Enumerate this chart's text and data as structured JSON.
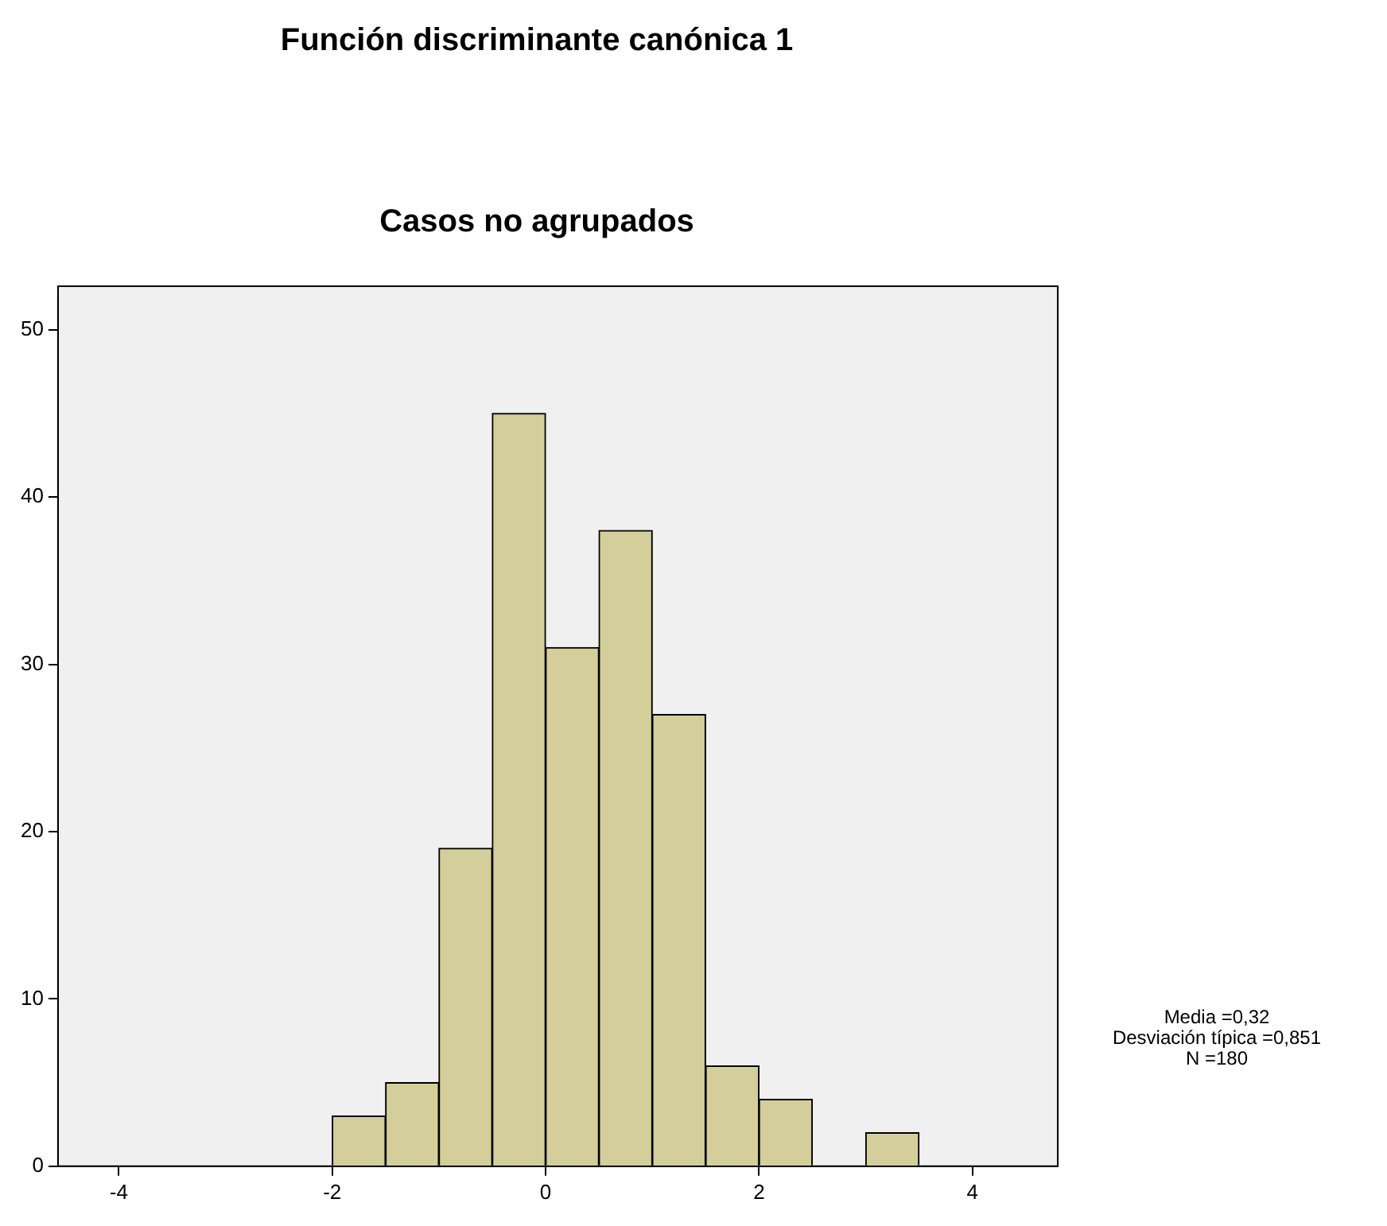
{
  "chart_data": {
    "type": "histogram",
    "title": "Función discriminante canónica 1",
    "subtitle": "Casos no agrupados",
    "bins": [
      -2,
      -1.5,
      -1,
      -0.5,
      0,
      0.5,
      1,
      1.5,
      2,
      2.5,
      3,
      3.5
    ],
    "values": [
      3,
      5,
      19,
      45,
      31,
      38,
      27,
      6,
      4,
      0,
      2
    ],
    "color": "#d4cf9a",
    "xlim": [
      -4.57,
      4.8
    ],
    "xticks": [
      -4,
      -2,
      0,
      2,
      4
    ],
    "ylim": [
      0,
      52.6
    ],
    "yticks": [
      0,
      10,
      20,
      30,
      40,
      50
    ],
    "grid": false,
    "legend": false,
    "annotations": [
      "Media =0,32",
      "Desviación típica =0,851",
      "N =180"
    ]
  }
}
